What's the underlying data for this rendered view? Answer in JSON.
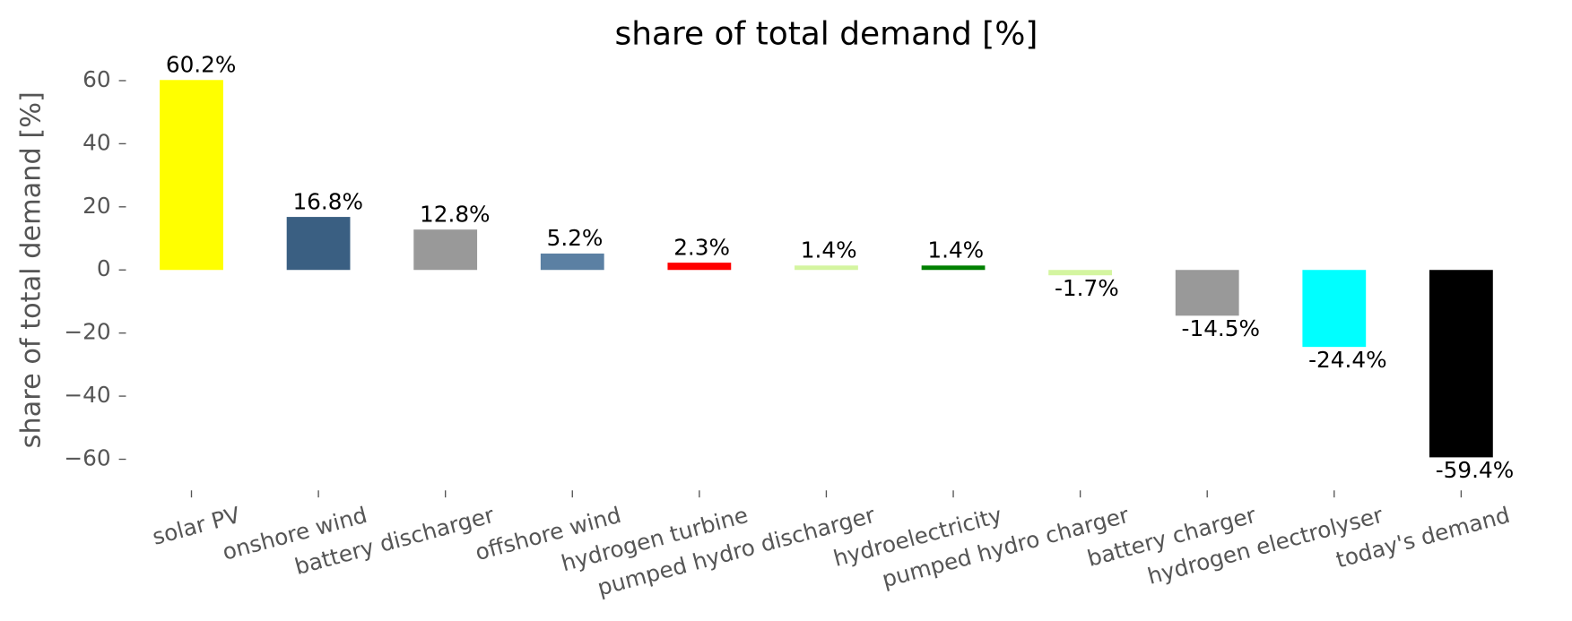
{
  "chart_data": {
    "type": "bar",
    "title": "share of total demand [%]",
    "ylabel": "share of total demand [%]",
    "categories": [
      "solar PV",
      "onshore wind",
      "battery discharger",
      "offshore wind",
      "hydrogen turbine",
      "pumped hydro discharger",
      "hydroelectricity",
      "pumped hydro charger",
      "battery charger",
      "hydrogen electrolyser",
      "today's demand"
    ],
    "values": [
      60.2,
      16.8,
      12.8,
      5.2,
      2.3,
      1.4,
      1.4,
      -1.7,
      -14.5,
      -24.4,
      -59.4
    ],
    "value_labels": [
      "60.2%",
      "16.8%",
      "12.8%",
      "5.2%",
      "2.3%",
      "1.4%",
      "1.4%",
      "-1.7%",
      "-14.5%",
      "-24.4%",
      "-59.4%"
    ],
    "colors": [
      "#ffff00",
      "#3a5f82",
      "#999999",
      "#5b80a3",
      "#ff0000",
      "#d4f5a0",
      "#008000",
      "#d4f5a0",
      "#999999",
      "#00ffff",
      "#000000"
    ],
    "ylim": [
      -67,
      66
    ],
    "yticks": [
      {
        "value": -60,
        "label": "−60"
      },
      {
        "value": -40,
        "label": "−40"
      },
      {
        "value": -20,
        "label": "−20"
      },
      0,
      20,
      40,
      60
    ],
    "grid": false
  }
}
